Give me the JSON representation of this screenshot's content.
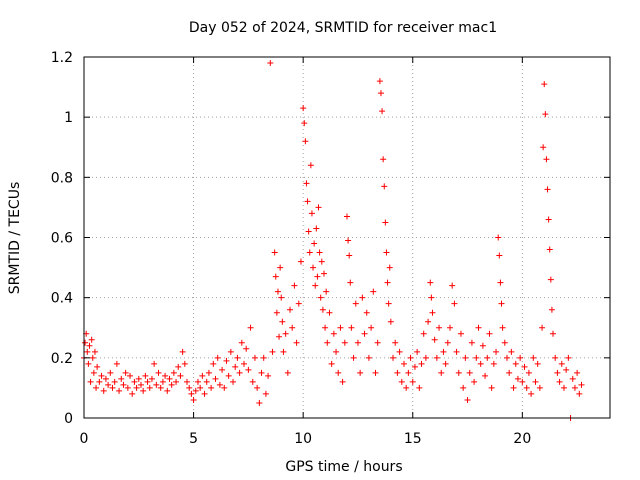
{
  "chart_data": {
    "type": "scatter",
    "title": "Day 052 of 2024, SRMTID for receiver mac1",
    "xlabel": "GPS time / hours",
    "ylabel": "SRMTID / TECUs",
    "xlim": [
      0,
      24
    ],
    "ylim": [
      0,
      1.2
    ],
    "x_ticks": [
      0,
      5,
      10,
      15,
      20
    ],
    "x_tick_labels": [
      "0",
      "5",
      "10",
      "15",
      "20"
    ],
    "y_ticks": [
      0,
      0.2,
      0.4,
      0.6,
      0.8,
      1.0,
      1.2
    ],
    "y_tick_labels": [
      "0",
      "0.2",
      "0.4",
      "0.6",
      "0.8",
      "1",
      "1.2"
    ],
    "grid": true,
    "marker": "+",
    "color": "#ff0000",
    "series": [
      {
        "name": "SRMTID",
        "points": [
          [
            0.0,
            0.2
          ],
          [
            0.05,
            0.25
          ],
          [
            0.1,
            0.28
          ],
          [
            0.15,
            0.22
          ],
          [
            0.2,
            0.18
          ],
          [
            0.25,
            0.24
          ],
          [
            0.3,
            0.12
          ],
          [
            0.35,
            0.26
          ],
          [
            0.4,
            0.2
          ],
          [
            0.45,
            0.15
          ],
          [
            0.5,
            0.22
          ],
          [
            0.55,
            0.1
          ],
          [
            0.6,
            0.17
          ],
          [
            0.7,
            0.12
          ],
          [
            0.8,
            0.14
          ],
          [
            0.9,
            0.09
          ],
          [
            1.0,
            0.13
          ],
          [
            1.1,
            0.11
          ],
          [
            1.2,
            0.15
          ],
          [
            1.3,
            0.1
          ],
          [
            1.4,
            0.12
          ],
          [
            1.5,
            0.18
          ],
          [
            1.6,
            0.09
          ],
          [
            1.7,
            0.13
          ],
          [
            1.8,
            0.11
          ],
          [
            1.9,
            0.15
          ],
          [
            2.0,
            0.1
          ],
          [
            2.1,
            0.14
          ],
          [
            2.2,
            0.08
          ],
          [
            2.3,
            0.12
          ],
          [
            2.4,
            0.1
          ],
          [
            2.5,
            0.13
          ],
          [
            2.6,
            0.11
          ],
          [
            2.7,
            0.09
          ],
          [
            2.8,
            0.14
          ],
          [
            2.9,
            0.12
          ],
          [
            3.0,
            0.1
          ],
          [
            3.1,
            0.13
          ],
          [
            3.2,
            0.18
          ],
          [
            3.3,
            0.11
          ],
          [
            3.4,
            0.15
          ],
          [
            3.5,
            0.1
          ],
          [
            3.6,
            0.12
          ],
          [
            3.7,
            0.14
          ],
          [
            3.8,
            0.09
          ],
          [
            3.9,
            0.13
          ],
          [
            4.0,
            0.11
          ],
          [
            4.1,
            0.15
          ],
          [
            4.2,
            0.12
          ],
          [
            4.3,
            0.17
          ],
          [
            4.4,
            0.14
          ],
          [
            4.5,
            0.22
          ],
          [
            4.6,
            0.18
          ],
          [
            4.7,
            0.12
          ],
          [
            4.8,
            0.1
          ],
          [
            4.9,
            0.08
          ],
          [
            5.0,
            0.06
          ],
          [
            5.1,
            0.09
          ],
          [
            5.2,
            0.12
          ],
          [
            5.3,
            0.1
          ],
          [
            5.4,
            0.14
          ],
          [
            5.5,
            0.08
          ],
          [
            5.6,
            0.12
          ],
          [
            5.7,
            0.15
          ],
          [
            5.8,
            0.1
          ],
          [
            5.9,
            0.18
          ],
          [
            6.0,
            0.13
          ],
          [
            6.1,
            0.2
          ],
          [
            6.2,
            0.11
          ],
          [
            6.3,
            0.16
          ],
          [
            6.4,
            0.1
          ],
          [
            6.5,
            0.19
          ],
          [
            6.6,
            0.14
          ],
          [
            6.7,
            0.22
          ],
          [
            6.8,
            0.12
          ],
          [
            6.9,
            0.17
          ],
          [
            7.0,
            0.2
          ],
          [
            7.1,
            0.15
          ],
          [
            7.2,
            0.25
          ],
          [
            7.3,
            0.18
          ],
          [
            7.4,
            0.23
          ],
          [
            7.5,
            0.16
          ],
          [
            7.6,
            0.3
          ],
          [
            7.7,
            0.12
          ],
          [
            7.8,
            0.2
          ],
          [
            7.9,
            0.1
          ],
          [
            8.0,
            0.05
          ],
          [
            8.1,
            0.15
          ],
          [
            8.2,
            0.2
          ],
          [
            8.3,
            0.08
          ],
          [
            8.4,
            0.14
          ],
          [
            8.5,
            1.18
          ],
          [
            8.6,
            0.22
          ],
          [
            8.7,
            0.55
          ],
          [
            8.75,
            0.47
          ],
          [
            8.8,
            0.35
          ],
          [
            8.85,
            0.42
          ],
          [
            8.9,
            0.27
          ],
          [
            8.95,
            0.5
          ],
          [
            9.0,
            0.4
          ],
          [
            9.05,
            0.32
          ],
          [
            9.1,
            0.22
          ],
          [
            9.2,
            0.28
          ],
          [
            9.3,
            0.15
          ],
          [
            9.4,
            0.36
          ],
          [
            9.5,
            0.3
          ],
          [
            9.6,
            0.44
          ],
          [
            9.7,
            0.25
          ],
          [
            9.8,
            0.38
          ],
          [
            9.9,
            0.52
          ],
          [
            10.0,
            1.03
          ],
          [
            10.05,
            0.98
          ],
          [
            10.1,
            0.92
          ],
          [
            10.15,
            0.78
          ],
          [
            10.2,
            0.72
          ],
          [
            10.25,
            0.62
          ],
          [
            10.3,
            0.55
          ],
          [
            10.35,
            0.84
          ],
          [
            10.4,
            0.68
          ],
          [
            10.45,
            0.5
          ],
          [
            10.5,
            0.58
          ],
          [
            10.55,
            0.44
          ],
          [
            10.6,
            0.63
          ],
          [
            10.65,
            0.47
          ],
          [
            10.7,
            0.7
          ],
          [
            10.75,
            0.55
          ],
          [
            10.8,
            0.4
          ],
          [
            10.85,
            0.52
          ],
          [
            10.9,
            0.36
          ],
          [
            10.95,
            0.48
          ],
          [
            11.0,
            0.3
          ],
          [
            11.05,
            0.42
          ],
          [
            11.1,
            0.25
          ],
          [
            11.2,
            0.35
          ],
          [
            11.3,
            0.18
          ],
          [
            11.4,
            0.28
          ],
          [
            11.5,
            0.22
          ],
          [
            11.6,
            0.15
          ],
          [
            11.7,
            0.3
          ],
          [
            11.8,
            0.12
          ],
          [
            11.9,
            0.25
          ],
          [
            12.0,
            0.67
          ],
          [
            12.05,
            0.59
          ],
          [
            12.1,
            0.54
          ],
          [
            12.15,
            0.45
          ],
          [
            12.2,
            0.3
          ],
          [
            12.3,
            0.2
          ],
          [
            12.4,
            0.38
          ],
          [
            12.5,
            0.25
          ],
          [
            12.6,
            0.15
          ],
          [
            12.7,
            0.4
          ],
          [
            12.8,
            0.28
          ],
          [
            12.9,
            0.35
          ],
          [
            13.0,
            0.2
          ],
          [
            13.1,
            0.3
          ],
          [
            13.2,
            0.42
          ],
          [
            13.3,
            0.15
          ],
          [
            13.4,
            0.25
          ],
          [
            13.5,
            1.12
          ],
          [
            13.55,
            1.08
          ],
          [
            13.6,
            1.02
          ],
          [
            13.65,
            0.86
          ],
          [
            13.7,
            0.77
          ],
          [
            13.75,
            0.65
          ],
          [
            13.8,
            0.55
          ],
          [
            13.85,
            0.45
          ],
          [
            13.9,
            0.38
          ],
          [
            13.95,
            0.5
          ],
          [
            14.0,
            0.32
          ],
          [
            14.1,
            0.2
          ],
          [
            14.2,
            0.25
          ],
          [
            14.3,
            0.15
          ],
          [
            14.4,
            0.22
          ],
          [
            14.5,
            0.12
          ],
          [
            14.6,
            0.18
          ],
          [
            14.7,
            0.1
          ],
          [
            14.8,
            0.15
          ],
          [
            14.9,
            0.2
          ],
          [
            15.0,
            0.12
          ],
          [
            15.1,
            0.17
          ],
          [
            15.2,
            0.22
          ],
          [
            15.3,
            0.1
          ],
          [
            15.4,
            0.18
          ],
          [
            15.5,
            0.28
          ],
          [
            15.6,
            0.2
          ],
          [
            15.7,
            0.32
          ],
          [
            15.8,
            0.45
          ],
          [
            15.85,
            0.4
          ],
          [
            15.9,
            0.35
          ],
          [
            16.0,
            0.26
          ],
          [
            16.1,
            0.2
          ],
          [
            16.2,
            0.3
          ],
          [
            16.3,
            0.15
          ],
          [
            16.4,
            0.22
          ],
          [
            16.5,
            0.18
          ],
          [
            16.6,
            0.25
          ],
          [
            16.7,
            0.3
          ],
          [
            16.8,
            0.44
          ],
          [
            16.9,
            0.38
          ],
          [
            17.0,
            0.22
          ],
          [
            17.1,
            0.15
          ],
          [
            17.2,
            0.28
          ],
          [
            17.3,
            0.1
          ],
          [
            17.4,
            0.2
          ],
          [
            17.5,
            0.06
          ],
          [
            17.6,
            0.15
          ],
          [
            17.7,
            0.25
          ],
          [
            17.8,
            0.12
          ],
          [
            17.9,
            0.2
          ],
          [
            18.0,
            0.3
          ],
          [
            18.1,
            0.18
          ],
          [
            18.2,
            0.24
          ],
          [
            18.3,
            0.14
          ],
          [
            18.4,
            0.2
          ],
          [
            18.5,
            0.28
          ],
          [
            18.6,
            0.1
          ],
          [
            18.7,
            0.18
          ],
          [
            18.8,
            0.22
          ],
          [
            18.9,
            0.6
          ],
          [
            18.95,
            0.54
          ],
          [
            19.0,
            0.45
          ],
          [
            19.05,
            0.38
          ],
          [
            19.1,
            0.3
          ],
          [
            19.2,
            0.25
          ],
          [
            19.3,
            0.2
          ],
          [
            19.4,
            0.15
          ],
          [
            19.5,
            0.22
          ],
          [
            19.6,
            0.1
          ],
          [
            19.7,
            0.18
          ],
          [
            19.8,
            0.13
          ],
          [
            19.9,
            0.2
          ],
          [
            20.0,
            0.12
          ],
          [
            20.1,
            0.17
          ],
          [
            20.2,
            0.1
          ],
          [
            20.3,
            0.15
          ],
          [
            20.4,
            0.08
          ],
          [
            20.5,
            0.2
          ],
          [
            20.6,
            0.12
          ],
          [
            20.7,
            0.18
          ],
          [
            20.8,
            0.1
          ],
          [
            20.9,
            0.3
          ],
          [
            20.95,
            0.9
          ],
          [
            21.0,
            1.11
          ],
          [
            21.05,
            1.01
          ],
          [
            21.1,
            0.86
          ],
          [
            21.15,
            0.76
          ],
          [
            21.2,
            0.66
          ],
          [
            21.25,
            0.56
          ],
          [
            21.3,
            0.46
          ],
          [
            21.35,
            0.36
          ],
          [
            21.4,
            0.28
          ],
          [
            21.5,
            0.2
          ],
          [
            21.6,
            0.15
          ],
          [
            21.7,
            0.12
          ],
          [
            21.8,
            0.18
          ],
          [
            21.9,
            0.1
          ],
          [
            22.0,
            0.16
          ],
          [
            22.1,
            0.2
          ],
          [
            22.2,
            0.0
          ],
          [
            22.3,
            0.13
          ],
          [
            22.4,
            0.1
          ],
          [
            22.5,
            0.15
          ],
          [
            22.6,
            0.08
          ],
          [
            22.7,
            0.11
          ]
        ]
      }
    ]
  }
}
